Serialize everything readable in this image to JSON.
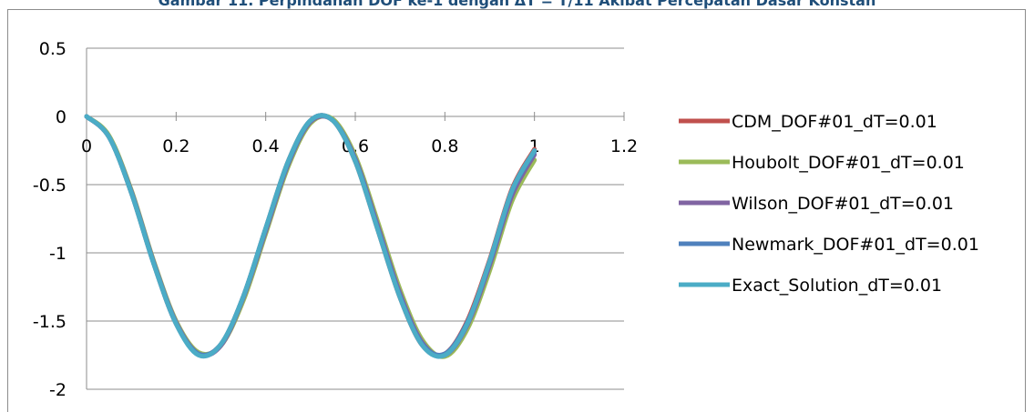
{
  "caption": "Gambar 11. Perpindahan DOF ke-1 dengan ΔT = T/11 Akibat Percepatan Dasar Konstan",
  "chart_data": {
    "type": "line",
    "title": "",
    "xlabel": "",
    "ylabel": "",
    "xlim": [
      0,
      1.2
    ],
    "ylim": [
      -2,
      0.5
    ],
    "x_ticks": [
      "0",
      "0.2",
      "0.4",
      "0.6",
      "0.8",
      "1",
      "1.2"
    ],
    "y_ticks": [
      "0.5",
      "0",
      "-0.5",
      "-1",
      "-1.5",
      "-2"
    ],
    "grid": "horizontal",
    "legend_position": "right",
    "x": [
      0,
      0.05,
      0.1,
      0.15,
      0.2,
      0.25,
      0.3,
      0.35,
      0.4,
      0.45,
      0.5,
      0.55,
      0.6,
      0.65,
      0.7,
      0.75,
      0.8,
      0.85,
      0.9,
      0.95,
      1.0
    ],
    "series": [
      {
        "name": "CDM_DOF#01_dT=0.01",
        "color": "#c0504d",
        "values": [
          0,
          -0.15,
          -0.56,
          -1.08,
          -1.52,
          -1.74,
          -1.67,
          -1.32,
          -0.82,
          -0.33,
          -0.03,
          -0.03,
          -0.33,
          -0.83,
          -1.33,
          -1.68,
          -1.74,
          -1.5,
          -1.05,
          -0.53,
          -0.24
        ]
      },
      {
        "name": "Houbolt_DOF#01_dT=0.01",
        "color": "#9bbb59",
        "values": [
          0,
          -0.14,
          -0.54,
          -1.06,
          -1.5,
          -1.73,
          -1.68,
          -1.35,
          -0.86,
          -0.37,
          -0.05,
          -0.02,
          -0.29,
          -0.77,
          -1.27,
          -1.64,
          -1.76,
          -1.56,
          -1.13,
          -0.62,
          -0.32
        ]
      },
      {
        "name": "Wilson_DOF#01_dT=0.01",
        "color": "#8064a2",
        "values": [
          0,
          -0.15,
          -0.55,
          -1.07,
          -1.51,
          -1.74,
          -1.68,
          -1.33,
          -0.84,
          -0.35,
          -0.04,
          -0.03,
          -0.31,
          -0.8,
          -1.3,
          -1.66,
          -1.75,
          -1.53,
          -1.09,
          -0.58,
          -0.28
        ]
      },
      {
        "name": "Newmark_DOF#01_dT=0.01",
        "color": "#4f81bd",
        "values": [
          0,
          -0.15,
          -0.56,
          -1.08,
          -1.52,
          -1.74,
          -1.67,
          -1.32,
          -0.82,
          -0.34,
          -0.03,
          -0.03,
          -0.32,
          -0.82,
          -1.32,
          -1.67,
          -1.74,
          -1.51,
          -1.07,
          -0.55,
          -0.26
        ]
      },
      {
        "name": "Exact_Solution_dT=0.01",
        "color": "#4bacc6",
        "values": [
          0,
          -0.15,
          -0.56,
          -1.08,
          -1.52,
          -1.75,
          -1.67,
          -1.32,
          -0.82,
          -0.33,
          -0.03,
          -0.03,
          -0.33,
          -0.83,
          -1.33,
          -1.68,
          -1.75,
          -1.52,
          -1.06,
          -0.54,
          -0.25
        ]
      }
    ]
  }
}
